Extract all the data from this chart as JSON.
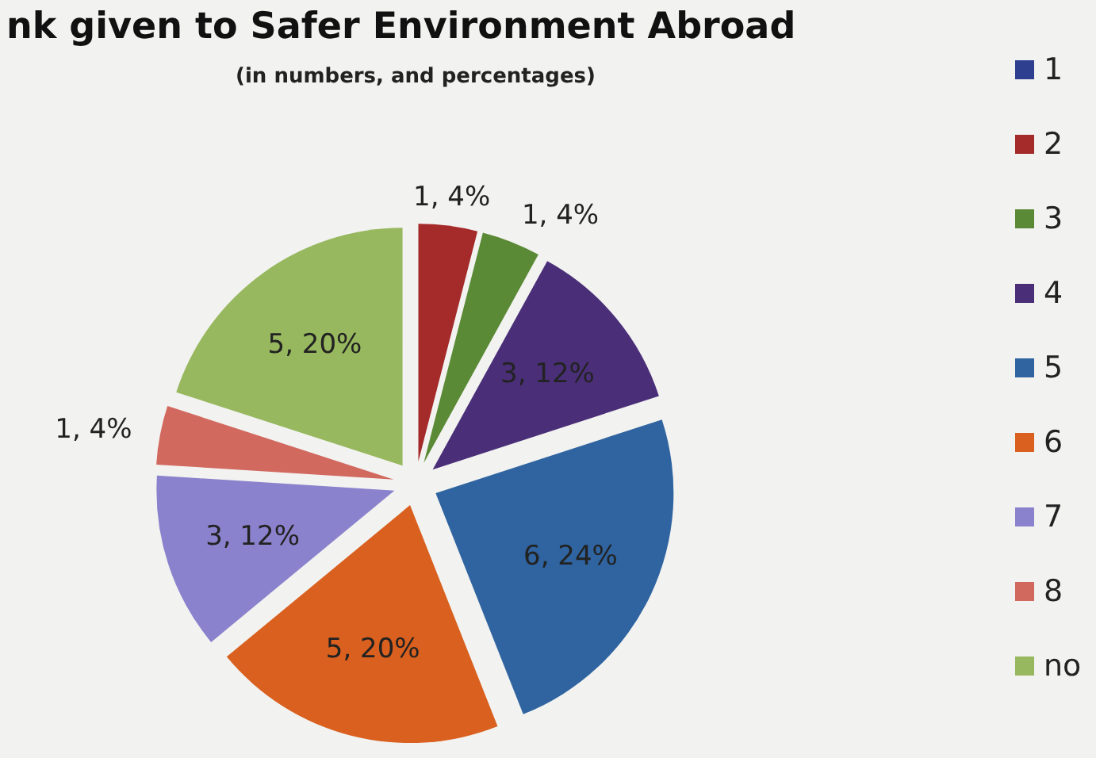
{
  "chart_data": {
    "type": "pie",
    "title": "nk given to Safer Environment Abroad",
    "subtitle": "(in numbers, and percentages)",
    "categories": [
      "1",
      "2",
      "3",
      "4",
      "5",
      "6",
      "7",
      "8",
      "no"
    ],
    "values": [
      0,
      1,
      1,
      3,
      6,
      5,
      3,
      1,
      5
    ],
    "value_labels": [
      null,
      "1, 4%",
      "1, 4%",
      "3, 12%",
      "6, 24%",
      "5, 20%",
      "3, 12%",
      "1, 4%",
      "5, 20%"
    ],
    "colors": [
      "#2e3f8f",
      "#a52a2a",
      "#5a8a35",
      "#4a2f78",
      "#2f64a0",
      "#d9601e",
      "#8a82cc",
      "#d2695f",
      "#97b85e"
    ],
    "legend": "right"
  }
}
